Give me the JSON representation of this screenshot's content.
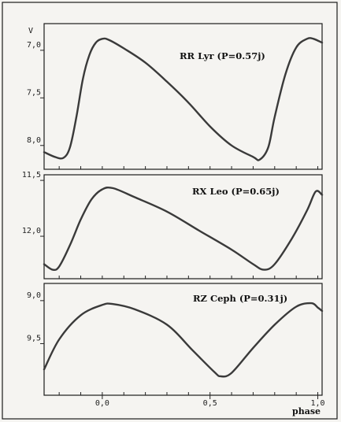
{
  "chart_data": [
    {
      "type": "line",
      "title": "RR Lyr (P=0.57j)",
      "ylabel": "V",
      "yticks": [
        {
          "value": 7.0,
          "label": "7,0"
        },
        {
          "value": 7.5,
          "label": "7,5"
        },
        {
          "value": 8.0,
          "label": "8,0"
        }
      ],
      "ylim": [
        6.72,
        8.25
      ],
      "y_inverted": true,
      "series": [
        {
          "x": [
            -0.27,
            -0.22,
            -0.18,
            -0.15,
            -0.12,
            -0.09,
            -0.06,
            -0.03,
            0.0,
            0.03,
            0.1,
            0.2,
            0.3,
            0.4,
            0.5,
            0.6,
            0.7,
            0.73,
            0.77,
            0.8,
            0.85,
            0.9,
            0.95,
            0.98,
            1.02
          ],
          "y": [
            8.07,
            8.12,
            8.13,
            8.02,
            7.7,
            7.3,
            7.05,
            6.92,
            6.88,
            6.89,
            6.98,
            7.13,
            7.33,
            7.55,
            7.8,
            8.0,
            8.12,
            8.15,
            8.02,
            7.7,
            7.25,
            6.97,
            6.88,
            6.88,
            6.92
          ]
        }
      ]
    },
    {
      "type": "line",
      "title": "RX Leo (P=0.65j)",
      "ylabel": "",
      "yticks": [
        {
          "value": 11.5,
          "label": "11,5"
        },
        {
          "value": 12.0,
          "label": "12,0"
        }
      ],
      "ylim": [
        11.45,
        12.38
      ],
      "y_inverted": true,
      "series": [
        {
          "x": [
            -0.27,
            -0.23,
            -0.2,
            -0.15,
            -0.1,
            -0.05,
            0.0,
            0.05,
            0.15,
            0.3,
            0.45,
            0.6,
            0.7,
            0.75,
            0.8,
            0.88,
            0.95,
            0.99,
            1.02
          ],
          "y": [
            12.25,
            12.3,
            12.27,
            12.08,
            11.85,
            11.67,
            11.58,
            11.57,
            11.65,
            11.78,
            11.95,
            12.12,
            12.25,
            12.3,
            12.25,
            12.02,
            11.77,
            11.6,
            11.63
          ]
        }
      ]
    },
    {
      "type": "line",
      "title": "RZ Ceph (P=0.31j)",
      "ylabel": "",
      "yticks": [
        {
          "value": 9.0,
          "label": "9,0"
        },
        {
          "value": 9.5,
          "label": "9,5"
        }
      ],
      "ylim": [
        8.8,
        10.1
      ],
      "y_inverted": true,
      "xlabel": "phase",
      "xticks": [
        {
          "value": 0.0,
          "label": "0,0"
        },
        {
          "value": 0.5,
          "label": "0,5"
        },
        {
          "value": 1.0,
          "label": "1,0"
        }
      ],
      "xlim": [
        -0.27,
        1.02
      ],
      "series": [
        {
          "x": [
            -0.27,
            -0.2,
            -0.1,
            0.0,
            0.05,
            0.15,
            0.3,
            0.42,
            0.52,
            0.55,
            0.6,
            0.7,
            0.8,
            0.9,
            0.97,
            1.0,
            1.02
          ],
          "y": [
            9.8,
            9.45,
            9.17,
            9.05,
            9.04,
            9.1,
            9.28,
            9.58,
            9.83,
            9.88,
            9.84,
            9.55,
            9.28,
            9.07,
            9.03,
            9.08,
            9.12
          ]
        }
      ]
    }
  ]
}
